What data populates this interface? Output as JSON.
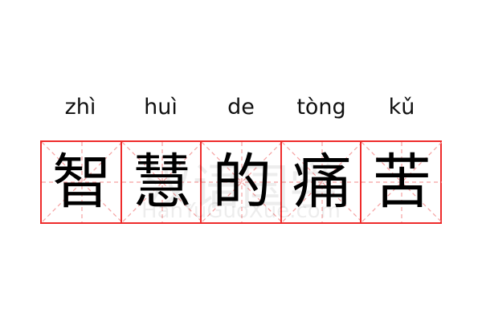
{
  "word": [
    {
      "pinyin": "zhì",
      "hanzi": "智"
    },
    {
      "pinyin": "huì",
      "hanzi": "慧"
    },
    {
      "pinyin": "de",
      "hanzi": "的"
    },
    {
      "pinyin": "tòng",
      "hanzi": "痛"
    },
    {
      "pinyin": "kǔ",
      "hanzi": "苦"
    }
  ],
  "watermark": {
    "cn": "汉语国学",
    "en": "HanYuGuoXue.com"
  },
  "colors": {
    "grid_border": "#ee2b2b",
    "guide_lines": "#f5a0a0",
    "text": "#000000"
  }
}
